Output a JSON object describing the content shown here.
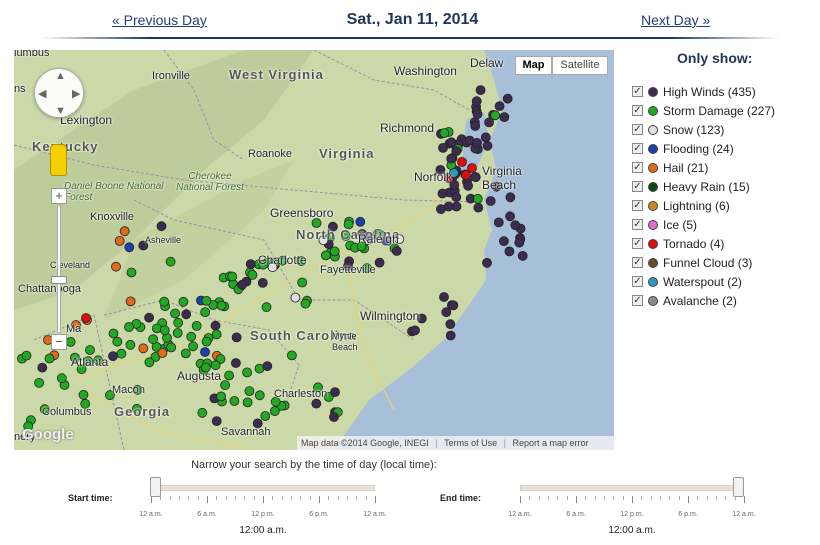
{
  "header": {
    "prev_label": "« Previous Day",
    "date": "Sat., Jan 11, 2014",
    "next_label": "Next Day »"
  },
  "map": {
    "type_map": "Map",
    "type_satellite": "Satellite",
    "google_logo": "Google",
    "attribution": {
      "data": "Map data ©2014 Google, INEGI",
      "terms": "Terms of Use",
      "report": "Report a map error"
    },
    "pan_icon": "pan-control-icon",
    "pegman_icon": "pegman-icon",
    "labels": {
      "west_virginia": "West Virginia",
      "virginia": "Virginia",
      "kentucky": "Kentucky",
      "north_carolina": "North Carolina",
      "south_carolina": "South Carolina",
      "georgia": "Georgia",
      "delaware": "Delaw",
      "washington": "Washington",
      "richmond": "Richmond",
      "norfolk": "Norfolk",
      "virginia_beach": "Virginia Beach",
      "lexington": "Lexington",
      "ironville": "Ironville",
      "roanoke": "Roanoke",
      "cherokee": "Cherokee National Forest",
      "daniel_boone": "Daniel Boone National Forest",
      "knoxville": "Knoxville",
      "greensboro": "Greensboro",
      "raleigh": "Raleigh",
      "fayetteville": "Fayetteville",
      "asheville": "Asheville",
      "charlotte": "Charlotte",
      "cleveland": "Cleveland",
      "chattanooga": "Chattanooga",
      "wilmington": "Wilmington",
      "myrtle_beach": "Myrtle Beach",
      "atlanta": "Atlanta",
      "augusta": "Augusta",
      "macon": "Macon",
      "columbus": "Columbus",
      "charleston": "Charleston",
      "savannah": "Savannah",
      "bus": "lumbus",
      "ns": "ns",
      "ta": "Ma",
      "ery": "nery"
    }
  },
  "legend": {
    "title": "Only show:",
    "checkmark": "✓",
    "items": [
      {
        "label": "High Winds (435)",
        "color": "#3c2d4f"
      },
      {
        "label": "Storm Damage (227)",
        "color": "#22a822"
      },
      {
        "label": "Snow (123)",
        "color": "#e0e0e0"
      },
      {
        "label": "Flooding (24)",
        "color": "#1c3fb0"
      },
      {
        "label": "Hail (21)",
        "color": "#e06a1a"
      },
      {
        "label": "Heavy Rain (15)",
        "color": "#0f4a10"
      },
      {
        "label": "Lightning (6)",
        "color": "#c9881f"
      },
      {
        "label": "Ice (5)",
        "color": "#e66ed3"
      },
      {
        "label": "Tornado (4)",
        "color": "#e00d0d"
      },
      {
        "label": "Funnel Cloud (3)",
        "color": "#6b4a2c"
      },
      {
        "label": "Waterspout (2)",
        "color": "#2a9bb8"
      },
      {
        "label": "Avalanche (2)",
        "color": "#8a8a8a"
      }
    ]
  },
  "time_search": {
    "prompt": "Narrow your search by the time of day (local time):",
    "start_label": "Start time:",
    "end_label": "End time:",
    "tick_labels": [
      "12 a.m.",
      "6 a.m.",
      "12 p.m.",
      "6 p.m.",
      "12 a.m."
    ],
    "start_value": "12:00 a.m.",
    "end_value": "12:00 a.m.",
    "start_position": 0,
    "end_position": 1
  }
}
